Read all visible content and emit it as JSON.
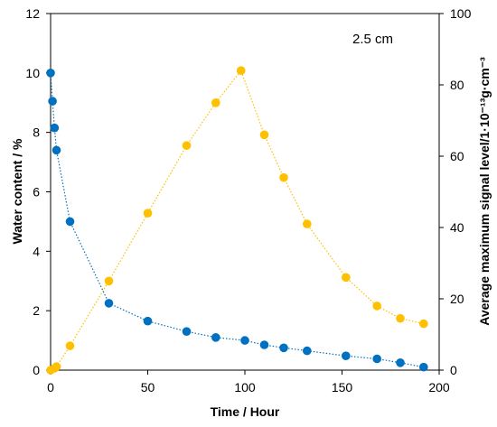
{
  "chart_data": {
    "type": "scatter",
    "annotation": "2.5 cm",
    "xlabel": "Time / Hour",
    "ylabel_left": "Water content / %",
    "ylabel_right": "Average maximum signal level/1·10⁻¹³g·cm⁻³",
    "xlim": [
      0,
      200
    ],
    "ylim_left": [
      0,
      12
    ],
    "ylim_right": [
      0,
      100
    ],
    "x_ticks": [
      0,
      50,
      100,
      150,
      200
    ],
    "y_left_ticks": [
      0,
      2,
      4,
      6,
      8,
      10,
      12
    ],
    "y_right_ticks": [
      0,
      20,
      40,
      60,
      80,
      100
    ],
    "grid": false,
    "series": [
      {
        "axis": "left",
        "color": "#0070c0",
        "x": [
          0,
          1,
          2,
          3,
          10,
          30,
          50,
          70,
          85,
          100,
          110,
          120,
          132,
          152,
          168,
          180,
          192
        ],
        "y": [
          10.0,
          9.05,
          8.15,
          7.4,
          5.0,
          2.25,
          1.65,
          1.3,
          1.1,
          1.0,
          0.85,
          0.75,
          0.65,
          0.48,
          0.38,
          0.25,
          0.1
        ]
      },
      {
        "axis": "right",
        "color": "#ffc000",
        "x": [
          0,
          2,
          3,
          10,
          30,
          50,
          70,
          85,
          98,
          110,
          120,
          132,
          152,
          168,
          180,
          192
        ],
        "y": [
          0,
          0.5,
          1.0,
          6.8,
          25.0,
          44.0,
          63.0,
          75.0,
          84.0,
          66.0,
          54.0,
          41.0,
          26.0,
          18.0,
          14.5,
          13.0
        ]
      }
    ]
  }
}
